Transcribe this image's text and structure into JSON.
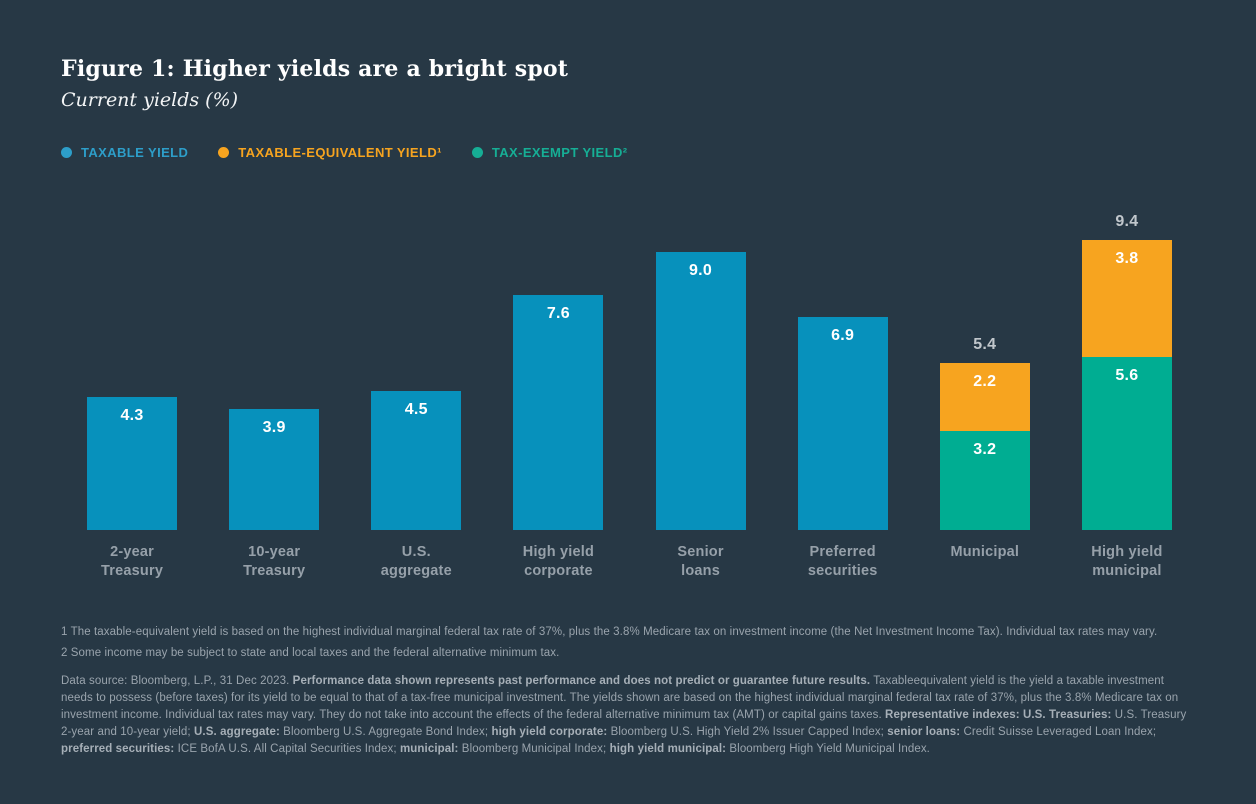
{
  "figure": {
    "title": "Figure 1: Higher yields are a bright spot",
    "subtitle": "Current yields (%)"
  },
  "colors": {
    "background": "#273845",
    "taxable_blue": "#0791BC",
    "taxable_equivalent_orange": "#F7A41F",
    "tax_exempt_teal": "#00AD92",
    "legend_blue_text": "#2D9EC9",
    "legend_orange_text": "#F7A41F",
    "legend_teal_text": "#16AE95",
    "title_text": "#FFFFFF",
    "category_label": "#96A0A9",
    "total_label": "#C1C7CC",
    "footnote_text": "#9AA4AD",
    "bar_value_text": "#FFFFFF"
  },
  "legend": [
    {
      "id": "taxable-yield",
      "label": "TAXABLE YIELD",
      "color": "#2D9EC9",
      "dot_color": "#2D9EC9"
    },
    {
      "id": "taxable-equivalent-yield",
      "label": "TAXABLE-EQUIVALENT YIELD¹",
      "color": "#F7A41F",
      "dot_color": "#F7A41F"
    },
    {
      "id": "tax-exempt-yield",
      "label": "TAX-EXEMPT YIELD²",
      "color": "#16AE95",
      "dot_color": "#16AE95"
    }
  ],
  "chart_data": {
    "type": "bar",
    "stacked": true,
    "title": "Current yields (%)",
    "xlabel": "",
    "ylabel": "Current yield (%)",
    "ylim": [
      0,
      10
    ],
    "grid": false,
    "legend_position": "top-left",
    "value_labels": "inside-top",
    "categories": [
      "2-year Treasury",
      "10-year Treasury",
      "U.S. aggregate",
      "High yield corporate",
      "Senior loans",
      "Preferred securities",
      "Municipal",
      "High yield municipal"
    ],
    "series": [
      {
        "name": "Taxable yield",
        "color": "#0791BC",
        "values": [
          4.3,
          3.9,
          4.5,
          7.6,
          9.0,
          6.9,
          null,
          null
        ]
      },
      {
        "name": "Taxable-equivalent yield",
        "color": "#F7A41F",
        "values": [
          null,
          null,
          null,
          null,
          null,
          null,
          2.2,
          3.8
        ]
      },
      {
        "name": "Tax-exempt yield",
        "color": "#00AD92",
        "values": [
          null,
          null,
          null,
          null,
          null,
          null,
          3.2,
          5.6
        ]
      }
    ],
    "stack_totals": [
      null,
      null,
      null,
      null,
      null,
      null,
      5.4,
      9.4
    ],
    "bars": [
      {
        "category_lines": [
          "2-year",
          "Treasury"
        ],
        "total_label": null,
        "segments": [
          {
            "series": "Taxable yield",
            "value": 4.3,
            "label": "4.3",
            "color": "#0791BC"
          }
        ]
      },
      {
        "category_lines": [
          "10-year",
          "Treasury"
        ],
        "total_label": null,
        "segments": [
          {
            "series": "Taxable yield",
            "value": 3.9,
            "label": "3.9",
            "color": "#0791BC"
          }
        ]
      },
      {
        "category_lines": [
          "U.S.",
          "aggregate"
        ],
        "total_label": null,
        "segments": [
          {
            "series": "Taxable yield",
            "value": 4.5,
            "label": "4.5",
            "color": "#0791BC"
          }
        ]
      },
      {
        "category_lines": [
          "High yield",
          "corporate"
        ],
        "total_label": null,
        "segments": [
          {
            "series": "Taxable yield",
            "value": 7.6,
            "label": "7.6",
            "color": "#0791BC"
          }
        ]
      },
      {
        "category_lines": [
          "Senior",
          "loans"
        ],
        "total_label": null,
        "segments": [
          {
            "series": "Taxable yield",
            "value": 9.0,
            "label": "9.0",
            "color": "#0791BC"
          }
        ]
      },
      {
        "category_lines": [
          "Preferred",
          "securities"
        ],
        "total_label": null,
        "segments": [
          {
            "series": "Taxable yield",
            "value": 6.9,
            "label": "6.9",
            "color": "#0791BC"
          }
        ]
      },
      {
        "category_lines": [
          "Municipal"
        ],
        "total_label": "5.4",
        "segments": [
          {
            "series": "Taxable-equivalent yield",
            "value": 2.2,
            "label": "2.2",
            "color": "#F7A41F"
          },
          {
            "series": "Tax-exempt yield",
            "value": 3.2,
            "label": "3.2",
            "color": "#00AD92"
          }
        ]
      },
      {
        "category_lines": [
          "High yield",
          "municipal"
        ],
        "total_label": "9.4",
        "segments": [
          {
            "series": "Taxable-equivalent yield",
            "value": 3.8,
            "label": "3.8",
            "color": "#F7A41F"
          },
          {
            "series": "Tax-exempt yield",
            "value": 5.6,
            "label": "5.6",
            "color": "#00AD92"
          }
        ]
      }
    ]
  },
  "footnotes": [
    "1 The taxable-equivalent yield is based on the highest individual marginal federal tax rate of 37%, plus the 3.8% Medicare tax on investment income (the Net Investment Income Tax). Individual tax rates may vary.",
    "2 Some income may be subject to state and local taxes and the federal alternative minimum tax."
  ],
  "footer": {
    "disclosure_segments": [
      {
        "text": "Data source: Bloomberg, L.P., 31 Dec 2023. ",
        "bold": false
      },
      {
        "text": "Performance data shown represents past performance and does not predict or guarantee future results.",
        "bold": true
      },
      {
        "text": " Taxableequivalent yield is the yield a taxable investment needs to possess (before taxes) for its yield to be equal to that of a tax-free municipal investment. The yields shown are based on the highest individual marginal federal tax rate of 37%, plus the 3.8% Medicare tax on investment income. Individual tax rates may vary. They do not take into account the effects of the federal alternative minimum tax (AMT) or capital gains taxes. ",
        "bold": false
      },
      {
        "text": "Representative indexes: U.S. Treasuries:",
        "bold": true
      },
      {
        "text": " U.S. Treasury 2-year and 10-year yield; ",
        "bold": false
      },
      {
        "text": "U.S. aggregate:",
        "bold": true
      },
      {
        "text": " Bloomberg U.S. Aggregate Bond Index; ",
        "bold": false
      },
      {
        "text": "high yield corporate:",
        "bold": true
      },
      {
        "text": " Bloomberg U.S. High Yield 2% Issuer Capped Index; ",
        "bold": false
      },
      {
        "text": "senior loans:",
        "bold": true
      },
      {
        "text": " Credit Suisse Leveraged Loan Index; ",
        "bold": false
      },
      {
        "text": "preferred securities:",
        "bold": true
      },
      {
        "text": " ICE BofA U.S. All Capital Securities Index; ",
        "bold": false
      },
      {
        "text": "municipal:",
        "bold": true
      },
      {
        "text": " Bloomberg Municipal Index; ",
        "bold": false
      },
      {
        "text": "high yield municipal:",
        "bold": true
      },
      {
        "text": " Bloomberg High Yield Municipal Index.",
        "bold": false
      }
    ]
  }
}
